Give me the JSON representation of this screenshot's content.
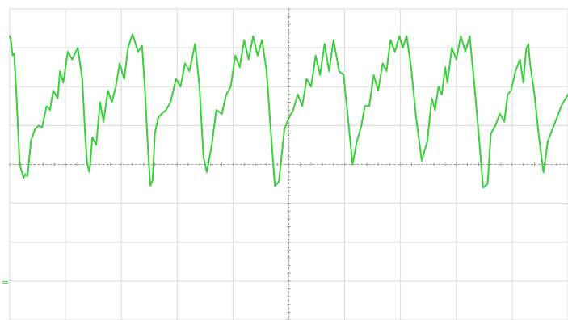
{
  "chart_data": {
    "type": "line",
    "title": "",
    "xlabel": "",
    "ylabel": "",
    "xlim": [
      0,
      10
    ],
    "ylim": [
      -4,
      4
    ],
    "grid": true,
    "x_divisions": 10,
    "y_divisions": 8,
    "ground_marker": "≡",
    "trace_color": "#3ccf3c",
    "grid_color": "#dadada",
    "center_axis_color": "#9a9a9a",
    "series": [
      {
        "color": "#3ccf3c",
        "x": [
          0.0,
          0.02,
          0.05,
          0.08,
          0.12,
          0.18,
          0.25,
          0.28,
          0.32,
          0.38,
          0.45,
          0.52,
          0.58,
          0.66,
          0.72,
          0.78,
          0.86,
          0.9,
          0.96,
          1.04,
          1.12,
          1.22,
          1.3,
          1.35,
          1.39,
          1.43,
          1.48,
          1.55,
          1.62,
          1.68,
          1.76,
          1.83,
          1.9,
          1.97,
          2.05,
          2.12,
          2.2,
          2.3,
          2.37,
          2.42,
          2.48,
          2.52,
          2.56,
          2.6,
          2.66,
          2.72,
          2.8,
          2.88,
          2.98,
          3.06,
          3.14,
          3.22,
          3.32,
          3.4,
          3.47,
          3.53,
          3.62,
          3.7,
          3.8,
          3.88,
          3.96,
          4.04,
          4.12,
          4.2,
          4.28,
          4.36,
          4.44,
          4.52,
          4.6,
          4.68,
          4.75,
          4.82,
          4.92,
          5.0,
          5.08,
          5.16,
          5.24,
          5.32,
          5.4,
          5.48,
          5.56,
          5.64,
          5.72,
          5.8,
          5.9,
          5.98,
          6.06,
          6.14,
          6.22,
          6.3,
          6.36,
          6.44,
          6.52,
          6.6,
          6.68,
          6.75,
          6.82,
          6.9,
          6.98,
          7.04,
          7.11,
          7.19,
          7.28,
          7.38,
          7.48,
          7.56,
          7.62,
          7.68,
          7.74,
          7.8,
          7.84,
          7.92,
          8.0,
          8.08,
          8.16,
          8.24,
          8.32,
          8.4,
          8.48,
          8.56,
          8.62,
          8.7,
          8.78,
          8.86,
          8.92,
          8.98,
          9.06,
          9.14,
          9.2,
          9.25,
          9.29,
          9.32,
          9.4,
          9.48,
          9.56,
          9.64,
          9.72,
          9.8,
          9.88,
          10.0
        ],
        "y": [
          3.3,
          3.2,
          2.8,
          2.85,
          1.8,
          0.0,
          -0.35,
          -0.25,
          -0.3,
          0.6,
          0.9,
          1.0,
          0.95,
          1.5,
          1.4,
          1.9,
          1.7,
          2.4,
          2.1,
          2.9,
          2.7,
          3.0,
          2.2,
          0.8,
          0.0,
          -0.2,
          0.7,
          0.5,
          1.6,
          1.1,
          1.9,
          1.6,
          2.0,
          2.6,
          2.2,
          3.0,
          3.35,
          2.9,
          3.05,
          2.0,
          0.3,
          -0.55,
          -0.4,
          0.8,
          1.2,
          1.3,
          1.4,
          1.6,
          2.2,
          2.0,
          2.6,
          2.4,
          3.1,
          2.0,
          0.2,
          -0.2,
          0.5,
          1.4,
          1.3,
          1.8,
          2.0,
          2.8,
          2.5,
          3.2,
          2.7,
          3.3,
          2.8,
          3.2,
          2.4,
          0.8,
          -0.55,
          -0.45,
          0.9,
          1.2,
          1.4,
          1.8,
          1.5,
          2.2,
          2.0,
          2.8,
          2.3,
          3.1,
          2.4,
          3.2,
          2.4,
          2.3,
          1.2,
          0.0,
          0.6,
          1.0,
          1.5,
          1.5,
          2.3,
          1.9,
          2.6,
          2.4,
          3.2,
          2.9,
          3.3,
          3.0,
          3.3,
          2.5,
          1.2,
          0.1,
          0.6,
          1.7,
          1.4,
          2.0,
          1.8,
          2.5,
          2.1,
          3.0,
          2.7,
          3.3,
          2.9,
          3.3,
          2.1,
          0.8,
          -0.6,
          -0.5,
          0.8,
          1.0,
          1.3,
          1.1,
          1.8,
          1.9,
          2.4,
          2.7,
          2.1,
          2.95,
          3.1,
          2.6,
          1.8,
          0.7,
          -0.2,
          0.6,
          0.9,
          1.2,
          1.5,
          1.8
        ]
      }
    ]
  }
}
